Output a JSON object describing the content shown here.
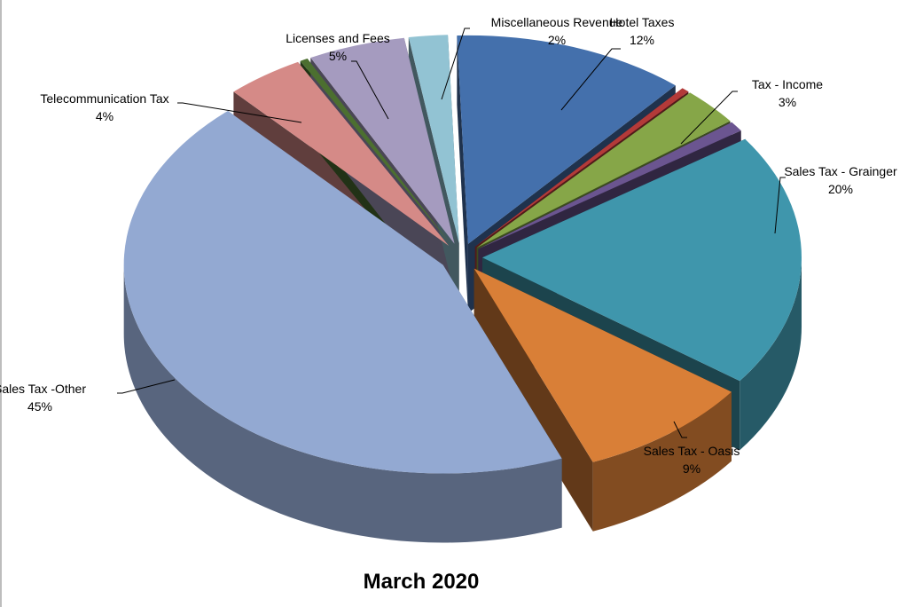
{
  "chart_data": {
    "type": "pie",
    "title": "March 2020",
    "slices": [
      {
        "label": "Hotel Taxes",
        "percent_label": "12%",
        "value": 12,
        "color": "#4470AC"
      },
      {
        "label": "",
        "percent_label": "",
        "value": 0.4,
        "color": "#B33A39"
      },
      {
        "label": "Tax - Income",
        "percent_label": "3%",
        "value": 3,
        "color": "#86A648"
      },
      {
        "label": "",
        "percent_label": "",
        "value": 0.8,
        "color": "#6B5590"
      },
      {
        "label": "Sales Tax - Grainger",
        "percent_label": "20%",
        "value": 20,
        "color": "#3F96AC"
      },
      {
        "label": "Sales Tax - Oasis",
        "percent_label": "9%",
        "value": 9,
        "color": "#D97F37"
      },
      {
        "label": "Sales Tax -Other",
        "percent_label": "45%",
        "value": 45,
        "color": "#93A9D2"
      },
      {
        "label": "Telecommunication Tax",
        "percent_label": "4%",
        "value": 4,
        "color": "#D58A87"
      },
      {
        "label": "",
        "percent_label": "",
        "value": 0.4,
        "color": "#4C6F30"
      },
      {
        "label": "Licenses and Fees",
        "percent_label": "5%",
        "value": 5,
        "color": "#A59BBF"
      },
      {
        "label": "Miscellaneous Revenue",
        "percent_label": "2%",
        "value": 2,
        "color": "#92C3D3"
      }
    ],
    "legend": "none",
    "data_labels": "outside with leader lines"
  }
}
